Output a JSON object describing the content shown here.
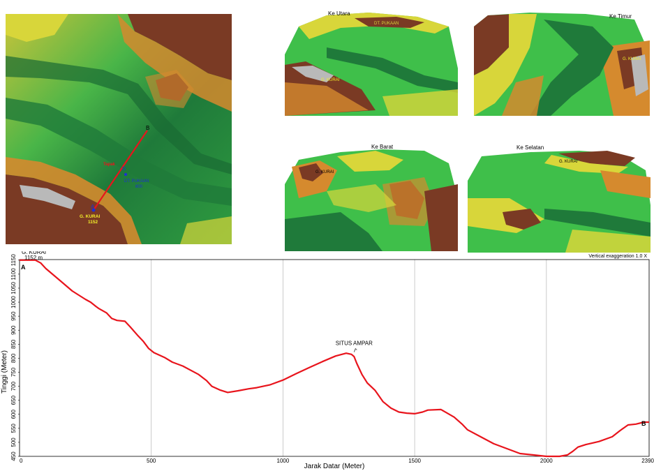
{
  "colors": {
    "profile_line": "#e8141c",
    "grid": "#bdbdbd",
    "terrain_low": "#1f7a3a",
    "terrain_mid": "#3fbf4a",
    "terrain_yellow": "#d8d63a",
    "terrain_orange": "#d58a2e",
    "terrain_brown": "#7a3a24",
    "terrain_peak": "#b9b9b9"
  },
  "maps": {
    "plan": {
      "point_a": "A",
      "point_b": "B",
      "point_d": "D",
      "line_label": "Tapak",
      "peak_name": "G. KURAI",
      "peak_elev": "1152",
      "site_name": "DT. PUKAAN",
      "site_elev": "800"
    },
    "views": [
      {
        "title": "Ke Utara",
        "labels": [
          "DT. PUKAAN",
          "G. KURAI"
        ]
      },
      {
        "title": "Ke Timur",
        "labels": [
          "G. KURAI"
        ]
      },
      {
        "title": "Ke Barat",
        "labels": [
          "G. KURAI"
        ]
      },
      {
        "title": "Ke Selatan",
        "labels": [
          "G. KURAI"
        ]
      }
    ]
  },
  "chart_data": {
    "type": "line",
    "xlabel": "Jarak Datar (Meter)",
    "ylabel": "Tinggi (Meter)",
    "xlim": [
      0,
      2390
    ],
    "ylim": [
      450,
      1152
    ],
    "x_ticks": [
      0,
      500,
      1000,
      1500,
      2000,
      2390
    ],
    "y_ticks": [
      450,
      500,
      550,
      600,
      650,
      700,
      750,
      800,
      850,
      900,
      950,
      1000,
      1050,
      1100,
      1150
    ],
    "grid": true,
    "note": "Vertical exaggeration 1.0 X",
    "start_label": "A",
    "end_label": "B",
    "annotations": [
      {
        "text": "G. KURAI\n1152 m",
        "x": 0,
        "y": 1152
      },
      {
        "text": "SITUS AMPAR",
        "x": 1270,
        "y": 812
      }
    ],
    "series": [
      {
        "x": [
          0,
          60,
          80,
          100,
          150,
          200,
          250,
          270,
          290,
          300,
          330,
          350,
          370,
          400,
          420,
          450,
          470,
          490,
          510,
          550,
          580,
          620,
          660,
          680,
          710,
          730,
          760,
          790,
          830,
          870,
          900,
          950,
          1000,
          1050,
          1100,
          1150,
          1200,
          1240,
          1260,
          1270,
          1280,
          1300,
          1320,
          1350,
          1380,
          1410,
          1440,
          1470,
          1500,
          1530,
          1550,
          1600,
          1650,
          1680,
          1700,
          1750,
          1800,
          1900,
          2000,
          2050,
          2080,
          2100,
          2120,
          2150,
          2200,
          2250,
          2280,
          2310,
          2340,
          2370,
          2390
        ],
        "y": [
          1150,
          1150,
          1140,
          1120,
          1080,
          1040,
          1010,
          1000,
          985,
          978,
          962,
          942,
          935,
          932,
          912,
          880,
          860,
          835,
          820,
          803,
          786,
          772,
          752,
          742,
          720,
          700,
          687,
          678,
          684,
          691,
          695,
          705,
          722,
          745,
          767,
          788,
          808,
          818,
          814,
          806,
          782,
          742,
          712,
          685,
          645,
          622,
          608,
          604,
          602,
          608,
          615,
          617,
          590,
          565,
          545,
          520,
          495,
          460,
          448,
          450,
          455,
          468,
          483,
          492,
          503,
          520,
          542,
          562,
          565,
          572,
          572
        ]
      }
    ]
  }
}
